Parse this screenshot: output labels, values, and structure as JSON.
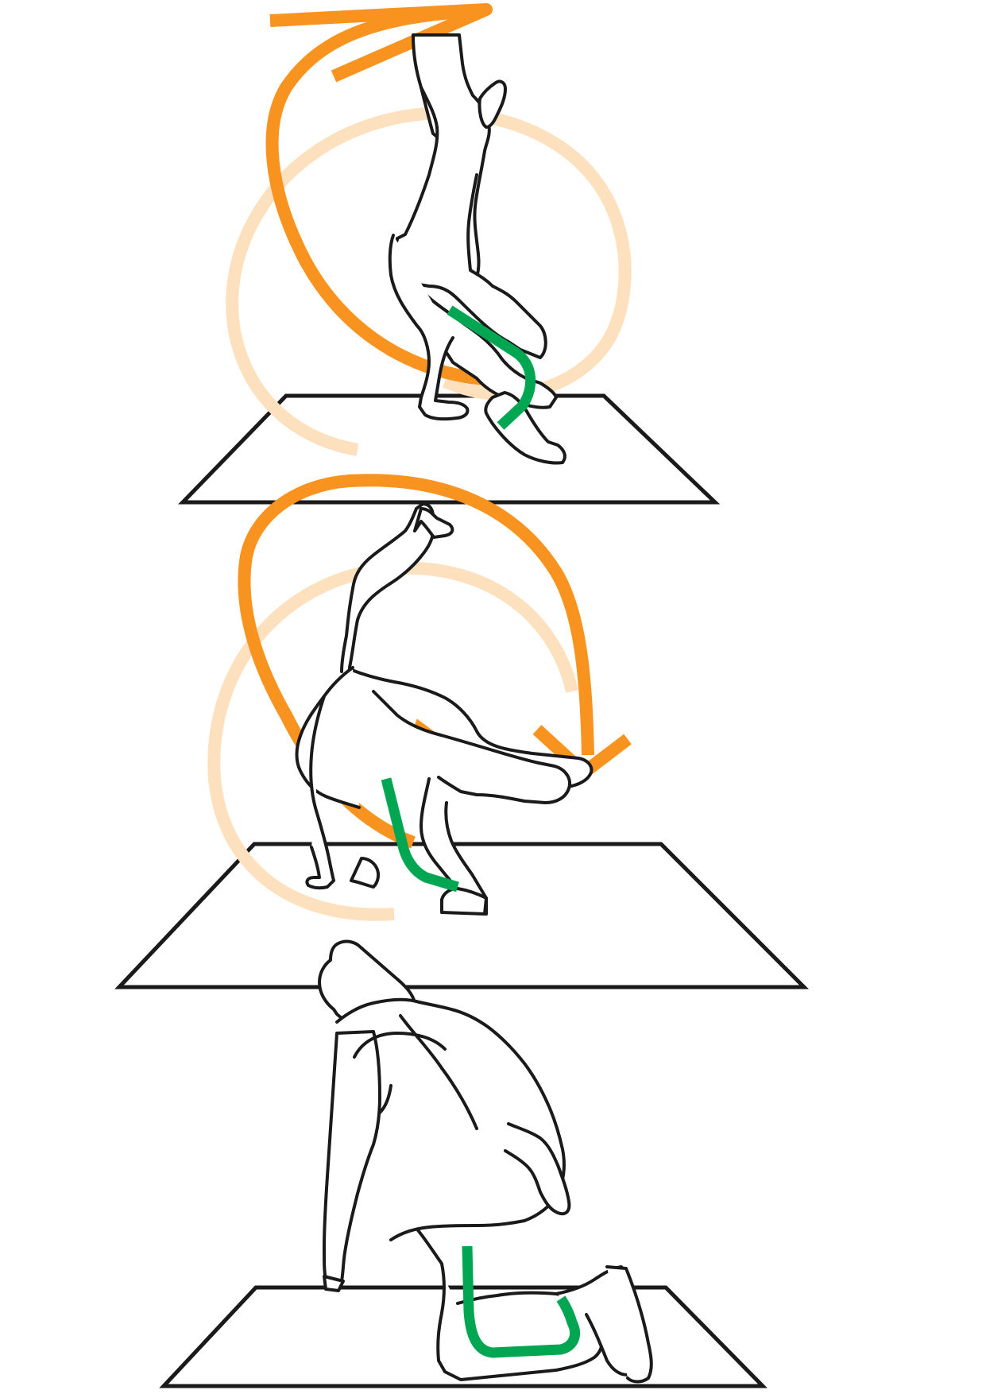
{
  "figure": {
    "panels": [
      {
        "id": "panel-1",
        "phase": "handstand-kick"
      },
      {
        "id": "panel-2",
        "phase": "rotation"
      },
      {
        "id": "panel-3",
        "phase": "kneeling-landing"
      }
    ]
  },
  "colors": {
    "background": "#ffffff",
    "outline": "#1a1a1a",
    "motion_orange": "#f7931e",
    "motion_orange_light": "#fbc88a",
    "motion_orange_faint": "#fde0bd",
    "support_leg_green": "#00a651"
  },
  "icons": {
    "motion": "orange-arrow-icon",
    "leg": "green-leg-line"
  }
}
